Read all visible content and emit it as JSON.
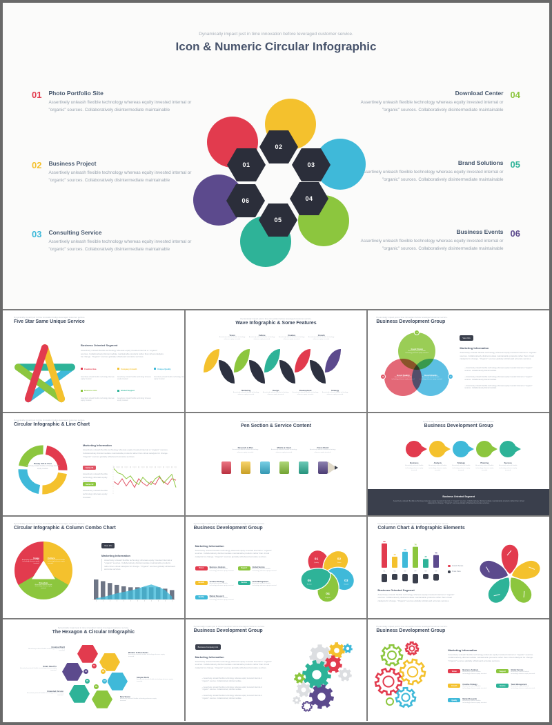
{
  "palette": {
    "red": "#e23b4e",
    "yellow": "#f4c12d",
    "cyan": "#3fb9d9",
    "green": "#8cc63e",
    "teal": "#2eb398",
    "purple": "#5c4a8d",
    "dark": "#2d3140",
    "navy": "#44546a",
    "gray_text": "#9aa4b1"
  },
  "common": {
    "kicker": "Dynamically impact just in time innovation before leveraged customer service.",
    "body": "Assertively unleash flexible technology whereas equity invested internal or \"organic\" sources. Collaboratively disintermediate maintainable",
    "body_long": "Assertively unleash flexible technology whereas equity invested internal or \"organic\" sources. Collaboratively disintermediate maintainable products rather than virtual catalysts for change. \"Organic\" sources globally whiteboard accurate services.",
    "cap_s": "Assertively unleash flexible technology whereas equity invested.",
    "marketing": "Marketing Information",
    "business": "Business Oriented Segment"
  },
  "main_slide": {
    "title": "Icon & Numeric Circular Infographic",
    "left_items": [
      {
        "num": "01",
        "title": "Photo Portfolio Site",
        "color": "#e23b4e"
      },
      {
        "num": "02",
        "title": "Business Project",
        "color": "#f4c12d"
      },
      {
        "num": "03",
        "title": "Consulting Service",
        "color": "#3fb9d9"
      }
    ],
    "right_items": [
      {
        "num": "04",
        "title": "Download Center",
        "color": "#8cc63e"
      },
      {
        "num": "05",
        "title": "Brand Solutions",
        "color": "#2eb398"
      },
      {
        "num": "06",
        "title": "Business Events",
        "color": "#5c4a8d"
      }
    ],
    "hex_numbers": [
      "01",
      "02",
      "03",
      "04",
      "05",
      "06"
    ]
  },
  "thumbnails": [
    {
      "title": "Five Star Same Unique Service",
      "legend": [
        {
          "label": "Creative Idea",
          "color": "#e23b4e"
        },
        {
          "label": "Company Growth",
          "color": "#f4c12d"
        },
        {
          "label": "Unique Quality",
          "color": "#3fb9d9"
        },
        {
          "label": "Business Aim",
          "color": "#8cc63e"
        },
        {
          "label": "Global Support",
          "color": "#2eb398"
        }
      ]
    },
    {
      "title": "Wave Infographic & Some Features",
      "segments": [
        {
          "c": "#f4c12d"
        },
        {
          "c": "#2d3140"
        },
        {
          "c": "#8cc63e"
        },
        {
          "c": "#2d3140"
        },
        {
          "c": "#2eb398"
        },
        {
          "c": "#2d3140"
        },
        {
          "c": "#e23b4e"
        },
        {
          "c": "#2d3140"
        },
        {
          "c": "#5c4a8d"
        }
      ],
      "labels_top": [
        {
          "label": "Vision"
        },
        {
          "label": "Culture"
        },
        {
          "label": "Creative"
        },
        {
          "label": "Growth"
        }
      ],
      "labels_bottom": [
        {
          "label": "Marketing"
        },
        {
          "label": "Design"
        },
        {
          "label": "Development"
        },
        {
          "label": "Strategy"
        }
      ]
    },
    {
      "title": "Business Development Group",
      "button": "View Info",
      "circles": [
        {
          "label": "Good Vision",
          "badge": "A",
          "color": "#8cc63e"
        },
        {
          "label": "Good Quality",
          "badge": "B",
          "color": "#e05364"
        },
        {
          "label": "Good Brands",
          "badge": "C",
          "color": "#45b6df"
        }
      ],
      "bullets": [
        "Assertively unleash flexible technology whereas equity invested internal or \"organic\" sources. Collaboratively disintermediate.",
        "Assertively unleash flexible technology whereas equity invested internal or \"organic\" sources. Collaboratively disintermediate.",
        "Assertively unleash flexible technology whereas equity invested internal or \"organic\" sources. Collaboratively disintermediate."
      ]
    },
    {
      "title": "Circular Infographic & Line Chart",
      "ring_title": "Ready Info & User",
      "badges": [
        {
          "label": "Series 01",
          "color": "#e05364"
        },
        {
          "label": "Series 02",
          "color": "#8cc63e"
        }
      ],
      "chart": {
        "type": "line",
        "series": [
          {
            "name": "Series 01",
            "color": "#e05364",
            "values": [
              4,
              3,
              5,
              2.5,
              4.5,
              2,
              5,
              3.5,
              2.5,
              4,
              3,
              5.5,
              4,
              3,
              5,
              4.5
            ]
          },
          {
            "name": "Series 02",
            "color": "#8cc63e",
            "values": [
              8.5,
              7,
              6.5,
              5,
              6,
              4,
              3,
              5.5,
              4,
              3,
              5,
              6,
              3.5,
              5,
              6.5,
              2
            ]
          }
        ]
      }
    },
    {
      "title": "Pen Section & Service Content",
      "segments": [
        {
          "c": "#e23b4e"
        },
        {
          "c": "#f4c12d"
        },
        {
          "c": "#3fb9d9"
        },
        {
          "c": "#8cc63e"
        },
        {
          "c": "#2eb398"
        }
      ],
      "labels_top": [
        {
          "label": "Research & Plan"
        },
        {
          "label": "Mobile & Cloud"
        },
        {
          "label": "Vision World"
        }
      ],
      "labels_bottom": [
        {
          "label": "Business Service"
        },
        {
          "label": "Feature Product"
        },
        {
          "label": "Awesome Series"
        }
      ]
    },
    {
      "title": "Business Development Group",
      "drops": [
        {
          "label": "Business",
          "color": "#e23b4e"
        },
        {
          "label": "Analysis",
          "color": "#f4c12d"
        },
        {
          "label": "Strategy",
          "color": "#3fb9d9"
        },
        {
          "label": "Planning",
          "color": "#8cc63e"
        },
        {
          "label": "Success",
          "color": "#2eb398"
        }
      ]
    },
    {
      "title": "Circular Infographic & Column Combo Chart",
      "button": "View Info",
      "pie": [
        {
          "label": "Image",
          "color": "#e23b4e"
        },
        {
          "label": "Culture",
          "color": "#f4c12d"
        },
        {
          "label": "Freedom",
          "color": "#8cc63e"
        }
      ],
      "chart": {
        "type": "bar+area",
        "bar_color": "#6e7686",
        "area_color": "#3fb9d9",
        "bars": [
          8.5,
          7.8,
          7,
          6.2,
          5.6,
          5.2,
          5.2,
          5.2,
          5.2,
          5.2,
          4.6,
          4
        ],
        "area": [
          0.5,
          1,
          1.8,
          2.6,
          3.2,
          3.8,
          4.6,
          5.6,
          6.4,
          5.4,
          4,
          1.2
        ]
      }
    },
    {
      "title": "Business Development Group",
      "pills": [
        {
          "label": "Vision",
          "color": "#e23b4e",
          "title": "Business Analysis"
        },
        {
          "label": "Growth",
          "color": "#f4c12d",
          "title": "Creative Strategy"
        },
        {
          "label": "Quality",
          "color": "#3fb9d9",
          "title": "Market Research"
        },
        {
          "label": "Support",
          "color": "#8cc63e",
          "title": "Global Service"
        },
        {
          "label": "Service",
          "color": "#2eb398",
          "title": "Team Management"
        }
      ],
      "wheel": [
        {
          "num": "01",
          "label": "Quality",
          "color": "#e23b4e"
        },
        {
          "num": "02",
          "label": "Vision",
          "color": "#f4c12d"
        },
        {
          "num": "03",
          "label": "Growth",
          "color": "#3fb9d9"
        },
        {
          "num": "04",
          "label": "Support",
          "color": "#8cc63e"
        },
        {
          "num": "05",
          "label": "Service",
          "color": "#2eb398"
        }
      ]
    },
    {
      "title": "Column Chart & Infographic Elements",
      "chart": {
        "type": "column",
        "labels": [
          "88",
          "40",
          "58",
          "76",
          "32",
          "46"
        ],
        "values": [
          8.8,
          4,
          5.8,
          7.6,
          3.2,
          4.6
        ],
        "colors": [
          "#e23b4e",
          "#f4c12d",
          "#3fb9d9",
          "#8cc63e",
          "#2eb398",
          "#5c4a8d"
        ],
        "categories": [
          "01",
          "02",
          "03",
          "04",
          "05",
          "06"
        ],
        "secondary": [
          3,
          2.2,
          2.6,
          3.4,
          1.8,
          2.4
        ],
        "secondary_color": "#3a3f4c"
      },
      "legend": [
        {
          "label": "Growth Series",
          "color": "#e23b4e"
        },
        {
          "label": "Scale Data",
          "color": "#3a3f4c"
        }
      ],
      "flower": [
        "#e23b4e",
        "#f4c12d",
        "#8cc63e",
        "#2eb398",
        "#5c4a8d"
      ]
    },
    {
      "title": "The Hexagon & Circular Infographic",
      "hexes": [
        {
          "num": "01",
          "color": "#e23b4e"
        },
        {
          "num": "02",
          "color": "#f4c12d"
        },
        {
          "num": "03",
          "color": "#3fb9d9"
        },
        {
          "num": "04",
          "color": "#8cc63e"
        },
        {
          "num": "05",
          "color": "#2eb398"
        },
        {
          "num": "06",
          "color": "#5c4a8d"
        }
      ],
      "labels_left": [
        {
          "label": "Creative World"
        },
        {
          "label": "Smart Idea Pro"
        },
        {
          "label": "Extended Version"
        }
      ],
      "labels_right": [
        {
          "label": "Modern & Best Series"
        },
        {
          "label": "Simple World"
        },
        {
          "label": "New Vision"
        }
      ]
    },
    {
      "title": "Business Development Group",
      "button": "Business Company Info",
      "bullets": [
        "Assertively unleash flexible technology whereas equity invested internal or \"organic\" sources. Collaboratively disintermediate.",
        "Assertively unleash flexible technology whereas equity invested internal or \"organic\" sources. Collaboratively disintermediate.",
        "Assertively unleash flexible technology whereas equity invested internal or \"organic\" sources. Collaboratively disintermediate."
      ]
    },
    {
      "title": "Business Development Group",
      "pills": [
        {
          "label": "Vision",
          "color": "#e23b4e",
          "title": "Business Analysis"
        },
        {
          "label": "Growth",
          "color": "#f4c12d",
          "title": "Creative Strategy"
        },
        {
          "label": "Quality",
          "color": "#3fb9d9",
          "title": "Market Research"
        },
        {
          "label": "Support",
          "color": "#8cc63e",
          "title": "Global Service"
        },
        {
          "label": "Service",
          "color": "#2eb398",
          "title": "Team Management"
        }
      ]
    }
  ]
}
